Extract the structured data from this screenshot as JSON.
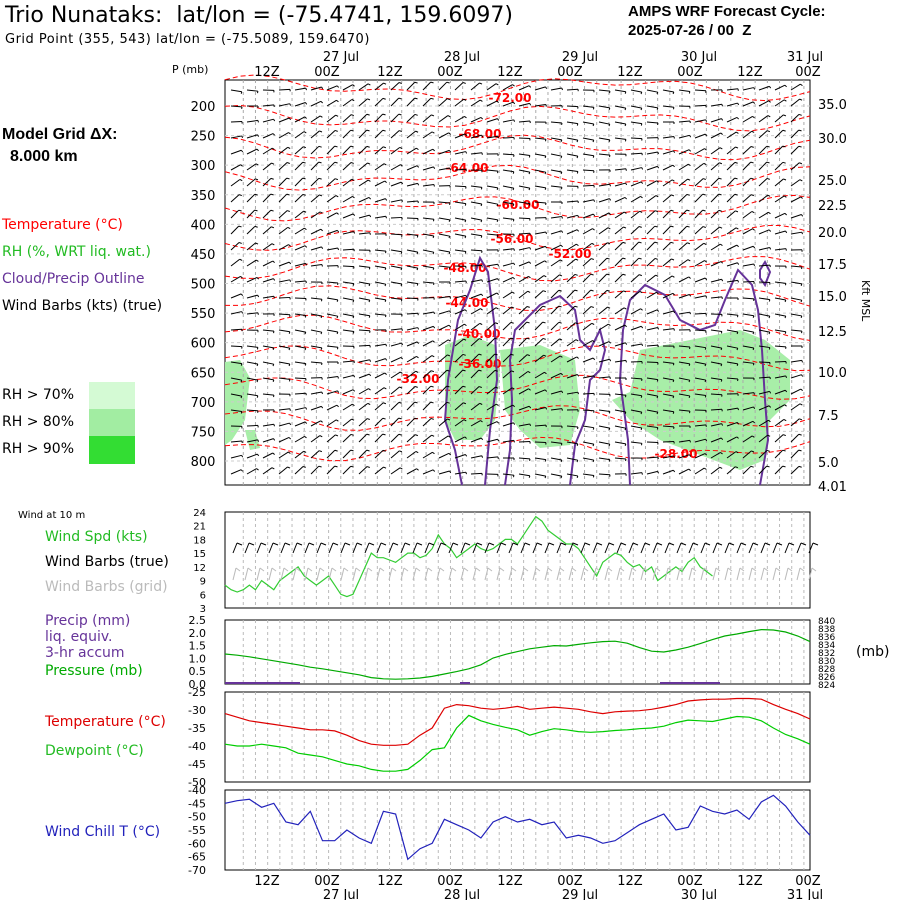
{
  "header": {
    "station_title": "Trio Nunataks:  lat/lon = (-75.4741, 159.6097)",
    "grid_point": "Grid Point (355, 543) lat/lon = (-75.5089, 159.6470)",
    "cycle_label": "AMPS WRF Forecast Cycle:",
    "cycle_value": "2025-07-26 / 00  Z"
  },
  "legend": {
    "grid_label": "Model Grid ΔX:",
    "grid_value": "8.000 km",
    "temperature": "Temperature (°C)",
    "rh": "RH (%, WRT liq. wat.)",
    "cloud": "Cloud/Precip Outline",
    "barbs": "Wind Barbs (kts) (true)",
    "rh_levels": [
      {
        "label": "RH > 70%",
        "color": "#d4fad4"
      },
      {
        "label": "RH > 80%",
        "color": "#a2eda2"
      },
      {
        "label": "RH > 90%",
        "color": "#33dd33"
      }
    ]
  },
  "colors": {
    "temperature": "#ff0000",
    "rh_fill": "#a8eea8",
    "cloud_outline": "#663399",
    "wind_speed": "#33cc33",
    "pressure": "#00aa00",
    "dewpoint": "#00cc00",
    "wind_chill": "#2222bb",
    "grid_barbs": "#bbbbbb",
    "precip": "#663399"
  },
  "time_axis": {
    "top_hours": [
      "12Z",
      "00Z",
      "12Z",
      "00Z",
      "12Z",
      "00Z",
      "12Z",
      "00Z",
      "12Z",
      "00Z"
    ],
    "dates": [
      "27 Jul",
      "28 Jul",
      "29 Jul",
      "30 Jul",
      "31 Jul"
    ]
  },
  "chart_data": [
    {
      "type": "line",
      "name": "time-height cross section",
      "ylabel_left": "P (mb)",
      "ylabel_right": "Kft MSL",
      "pressure_ticks": [
        "200",
        "250",
        "300",
        "350",
        "400",
        "450",
        "500",
        "550",
        "600",
        "650",
        "700",
        "750",
        "800"
      ],
      "height_ticks": [
        "35.0",
        "30.0",
        "25.0",
        "22.5",
        "20.0",
        "17.5",
        "15.0",
        "12.5",
        "10.0",
        "7.5",
        "5.0",
        "4.01"
      ],
      "temperature_labels": [
        "-72.00",
        "-68.00",
        "-64.00",
        "-60.00",
        "-56.00",
        "-52.00",
        "-48.00",
        "-44.00",
        "-40.00",
        "-36.00",
        "-32.00",
        "-28.00"
      ]
    },
    {
      "type": "line",
      "title": "Wind at 10 m",
      "series_labels": [
        "Wind Spd (kts)",
        "Wind Barbs (true)",
        "Wind Barbs (grid)"
      ],
      "yticks": [
        "24",
        "21",
        "18",
        "15",
        "12",
        "9",
        "6",
        "3"
      ],
      "ylim": [
        3,
        24
      ],
      "x_hours": [
        0,
        6,
        12,
        18,
        24,
        30,
        36,
        42,
        48,
        54,
        60,
        66,
        72,
        78,
        84,
        90,
        96,
        102,
        108,
        114,
        120,
        126,
        132,
        138,
        144,
        150,
        156,
        162,
        168,
        174,
        180,
        186,
        192,
        198,
        204,
        210,
        216,
        222,
        228,
        234,
        240,
        246,
        252,
        258,
        264,
        270,
        276,
        282,
        288,
        294,
        300,
        306,
        312,
        318,
        324,
        330,
        336,
        342,
        348,
        354,
        360,
        366,
        372,
        378,
        384,
        390,
        396,
        402,
        408,
        414,
        420,
        426,
        432,
        438,
        444,
        450,
        456,
        462,
        468,
        474,
        480,
        486,
        492,
        498,
        504,
        510,
        516,
        522,
        528,
        534,
        540,
        546,
        552,
        558,
        564,
        570,
        576
      ],
      "series": [
        {
          "name": "Wind Spd (kts)",
          "values": [
            8,
            7,
            6.5,
            7,
            8,
            7,
            9,
            8,
            7,
            9,
            10,
            11,
            12,
            10,
            9,
            8,
            9,
            10,
            8,
            6,
            5.5,
            6,
            9,
            12,
            15,
            14,
            14,
            13.5,
            13,
            14,
            15,
            15,
            14,
            14.5,
            16,
            19,
            17,
            16,
            14,
            15,
            16,
            17,
            16,
            15.5,
            16,
            17,
            18,
            18,
            17,
            19,
            21,
            23,
            22,
            20,
            19,
            18,
            17,
            17,
            16,
            14,
            12,
            10,
            13,
            14,
            15,
            14.5,
            13,
            12,
            12.5,
            11,
            12,
            9,
            10,
            11,
            12,
            11,
            13,
            14,
            12,
            11,
            10
          ]
        }
      ]
    },
    {
      "type": "line",
      "series_labels": [
        "Precip (mm)",
        "liq. equiv.",
        "3-hr accum",
        "Pressure (mb)"
      ],
      "yticks_left": [
        "2.5",
        "2.0",
        "1.5",
        "1.0",
        "0.5",
        "0.0"
      ],
      "yticks_right": [
        "840",
        "838",
        "836",
        "834",
        "832",
        "830",
        "828",
        "826",
        "824"
      ],
      "ylabel_right": "(mb)",
      "ylim_left": [
        0,
        2.5
      ],
      "ylim_right": [
        824,
        840
      ],
      "series": [
        {
          "name": "Pressure (mb)",
          "x_hours": [
            0,
            12,
            24,
            36,
            48,
            60,
            72,
            84,
            96,
            108,
            120,
            132,
            144,
            156,
            168,
            180,
            192,
            204,
            216,
            228,
            240,
            252,
            264,
            276,
            288,
            300,
            312,
            324,
            336,
            348,
            360,
            372,
            384,
            396,
            408,
            420,
            432,
            444,
            456,
            468,
            480,
            492,
            504,
            516,
            528,
            540,
            552,
            564,
            576
          ],
          "values": [
            831.5,
            831.2,
            830.8,
            830.3,
            829.8,
            829.3,
            828.8,
            828.2,
            827.8,
            827.3,
            826.8,
            826.3,
            825.6,
            825.3,
            825.2,
            825.3,
            825.5,
            825.9,
            826.5,
            827.1,
            827.8,
            828.8,
            830.5,
            831.4,
            832.1,
            832.8,
            833.2,
            833.6,
            833.5,
            833.9,
            834.3,
            834.6,
            834.7,
            834.2,
            833.1,
            832.2,
            832.0,
            832.5,
            833.2,
            834.1,
            835.1,
            836.0,
            836.5,
            837.1,
            837.6,
            837.5,
            837.0,
            836.0,
            834.6
          ]
        },
        {
          "name": "Precip (mm)",
          "values": [
            0,
            0,
            0,
            0,
            0,
            0,
            0
          ]
        }
      ]
    },
    {
      "type": "line",
      "series_labels": [
        "Temperature (°C)",
        "Dewpoint (°C)"
      ],
      "yticks": [
        "-25",
        "-30",
        "-35",
        "-40",
        "-45",
        "-50"
      ],
      "ylim": [
        -50,
        -25
      ],
      "x_hours": [
        0,
        12,
        24,
        36,
        48,
        60,
        72,
        84,
        96,
        108,
        120,
        132,
        144,
        156,
        168,
        180,
        192,
        204,
        216,
        228,
        240,
        252,
        264,
        276,
        288,
        300,
        312,
        324,
        336,
        348,
        360,
        372,
        384,
        396,
        408,
        420,
        432,
        444,
        456,
        468,
        480,
        492,
        504,
        516,
        528,
        540,
        552,
        564,
        576
      ],
      "series": [
        {
          "name": "Temperature (°C)",
          "values": [
            -31,
            -32,
            -33,
            -33.5,
            -34,
            -34.5,
            -35,
            -35.5,
            -35.5,
            -35.8,
            -37,
            -38.5,
            -39.5,
            -39.8,
            -39.8,
            -39.5,
            -37,
            -35,
            -29.5,
            -28.5,
            -28.8,
            -29.5,
            -29.8,
            -29.5,
            -29,
            -29.8,
            -29.5,
            -29.2,
            -29.5,
            -29.8,
            -30.5,
            -31,
            -30.5,
            -30.3,
            -30.2,
            -29.8,
            -29.2,
            -28.5,
            -27.5,
            -27.2,
            -27.0,
            -27.0,
            -26.8,
            -26.8,
            -27.0,
            -28.5,
            -29.8,
            -31,
            -32.5
          ]
        },
        {
          "name": "Dewpoint (°C)",
          "values": [
            -39.5,
            -40,
            -40,
            -39.5,
            -40,
            -40.5,
            -42,
            -42.5,
            -43,
            -44,
            -45,
            -45.5,
            -46.5,
            -47,
            -47,
            -46.5,
            -44,
            -41,
            -40.5,
            -35,
            -31.5,
            -33,
            -34,
            -34.8,
            -35.5,
            -37,
            -36,
            -35.2,
            -35.5,
            -36,
            -36.2,
            -36,
            -35.7,
            -35.5,
            -35.2,
            -35,
            -34.5,
            -33.5,
            -32.8,
            -33,
            -33.2,
            -32.5,
            -31.8,
            -32,
            -33,
            -35,
            -36.8,
            -38,
            -39.5
          ]
        }
      ]
    },
    {
      "type": "line",
      "series_labels": [
        "Wind Chill T (°C)"
      ],
      "yticks": [
        "-40",
        "-45",
        "-50",
        "-55",
        "-60",
        "-65",
        "-70"
      ],
      "ylim": [
        -70,
        -40
      ],
      "x_hours": [
        0,
        12,
        24,
        36,
        48,
        60,
        72,
        84,
        96,
        108,
        120,
        132,
        144,
        156,
        168,
        180,
        192,
        204,
        216,
        228,
        240,
        252,
        264,
        276,
        288,
        300,
        312,
        324,
        336,
        348,
        360,
        372,
        384,
        396,
        408,
        420,
        432,
        444,
        456,
        468,
        480,
        492,
        504,
        516,
        528,
        540,
        552,
        564,
        576
      ],
      "series": [
        {
          "name": "Wind Chill T (°C)",
          "values": [
            -45,
            -44,
            -43.5,
            -46.5,
            -45,
            -52,
            -53,
            -48,
            -59,
            -59,
            -55,
            -58,
            -60,
            -48,
            -49,
            -66,
            -62,
            -60,
            -51,
            -53,
            -55,
            -58,
            -52,
            -50,
            -52,
            -51,
            -53,
            -52,
            -58,
            -57,
            -58,
            -60,
            -59,
            -56,
            -53,
            -51,
            -49,
            -55,
            -54,
            -46,
            -48,
            -49,
            -47.5,
            -51,
            -44.5,
            -42,
            -46,
            -52,
            -57
          ]
        }
      ]
    }
  ]
}
